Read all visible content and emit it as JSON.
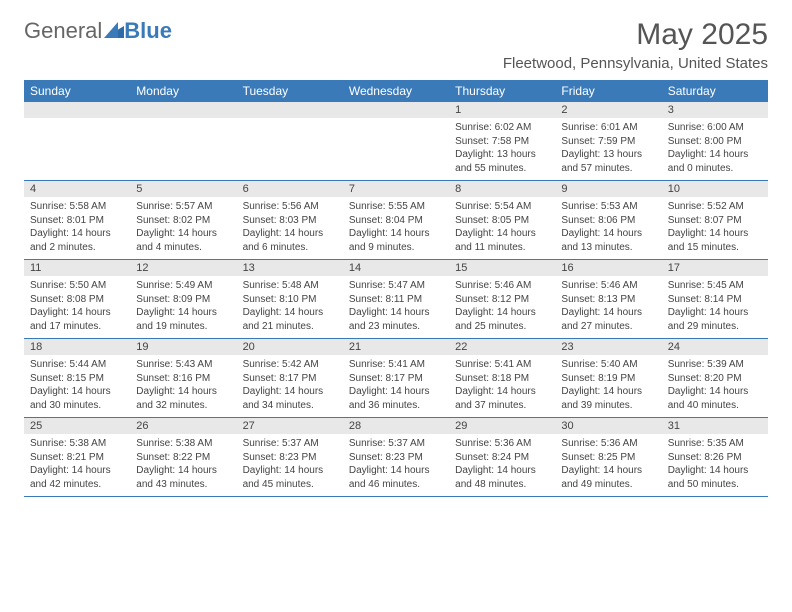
{
  "logo": {
    "part1": "General",
    "part2": "Blue"
  },
  "title": "May 2025",
  "location": "Fleetwood, Pennsylvania, United States",
  "colors": {
    "header_bg": "#3a7ab8",
    "header_text": "#ffffff",
    "date_bar_bg": "#e8e8e8",
    "text": "#444444",
    "title_text": "#555555"
  },
  "day_names": [
    "Sunday",
    "Monday",
    "Tuesday",
    "Wednesday",
    "Thursday",
    "Friday",
    "Saturday"
  ],
  "weeks": [
    [
      {
        "date": "",
        "sunrise": "",
        "sunset": "",
        "daylight": ""
      },
      {
        "date": "",
        "sunrise": "",
        "sunset": "",
        "daylight": ""
      },
      {
        "date": "",
        "sunrise": "",
        "sunset": "",
        "daylight": ""
      },
      {
        "date": "",
        "sunrise": "",
        "sunset": "",
        "daylight": ""
      },
      {
        "date": "1",
        "sunrise": "Sunrise: 6:02 AM",
        "sunset": "Sunset: 7:58 PM",
        "daylight": "Daylight: 13 hours and 55 minutes."
      },
      {
        "date": "2",
        "sunrise": "Sunrise: 6:01 AM",
        "sunset": "Sunset: 7:59 PM",
        "daylight": "Daylight: 13 hours and 57 minutes."
      },
      {
        "date": "3",
        "sunrise": "Sunrise: 6:00 AM",
        "sunset": "Sunset: 8:00 PM",
        "daylight": "Daylight: 14 hours and 0 minutes."
      }
    ],
    [
      {
        "date": "4",
        "sunrise": "Sunrise: 5:58 AM",
        "sunset": "Sunset: 8:01 PM",
        "daylight": "Daylight: 14 hours and 2 minutes."
      },
      {
        "date": "5",
        "sunrise": "Sunrise: 5:57 AM",
        "sunset": "Sunset: 8:02 PM",
        "daylight": "Daylight: 14 hours and 4 minutes."
      },
      {
        "date": "6",
        "sunrise": "Sunrise: 5:56 AM",
        "sunset": "Sunset: 8:03 PM",
        "daylight": "Daylight: 14 hours and 6 minutes."
      },
      {
        "date": "7",
        "sunrise": "Sunrise: 5:55 AM",
        "sunset": "Sunset: 8:04 PM",
        "daylight": "Daylight: 14 hours and 9 minutes."
      },
      {
        "date": "8",
        "sunrise": "Sunrise: 5:54 AM",
        "sunset": "Sunset: 8:05 PM",
        "daylight": "Daylight: 14 hours and 11 minutes."
      },
      {
        "date": "9",
        "sunrise": "Sunrise: 5:53 AM",
        "sunset": "Sunset: 8:06 PM",
        "daylight": "Daylight: 14 hours and 13 minutes."
      },
      {
        "date": "10",
        "sunrise": "Sunrise: 5:52 AM",
        "sunset": "Sunset: 8:07 PM",
        "daylight": "Daylight: 14 hours and 15 minutes."
      }
    ],
    [
      {
        "date": "11",
        "sunrise": "Sunrise: 5:50 AM",
        "sunset": "Sunset: 8:08 PM",
        "daylight": "Daylight: 14 hours and 17 minutes."
      },
      {
        "date": "12",
        "sunrise": "Sunrise: 5:49 AM",
        "sunset": "Sunset: 8:09 PM",
        "daylight": "Daylight: 14 hours and 19 minutes."
      },
      {
        "date": "13",
        "sunrise": "Sunrise: 5:48 AM",
        "sunset": "Sunset: 8:10 PM",
        "daylight": "Daylight: 14 hours and 21 minutes."
      },
      {
        "date": "14",
        "sunrise": "Sunrise: 5:47 AM",
        "sunset": "Sunset: 8:11 PM",
        "daylight": "Daylight: 14 hours and 23 minutes."
      },
      {
        "date": "15",
        "sunrise": "Sunrise: 5:46 AM",
        "sunset": "Sunset: 8:12 PM",
        "daylight": "Daylight: 14 hours and 25 minutes."
      },
      {
        "date": "16",
        "sunrise": "Sunrise: 5:46 AM",
        "sunset": "Sunset: 8:13 PM",
        "daylight": "Daylight: 14 hours and 27 minutes."
      },
      {
        "date": "17",
        "sunrise": "Sunrise: 5:45 AM",
        "sunset": "Sunset: 8:14 PM",
        "daylight": "Daylight: 14 hours and 29 minutes."
      }
    ],
    [
      {
        "date": "18",
        "sunrise": "Sunrise: 5:44 AM",
        "sunset": "Sunset: 8:15 PM",
        "daylight": "Daylight: 14 hours and 30 minutes."
      },
      {
        "date": "19",
        "sunrise": "Sunrise: 5:43 AM",
        "sunset": "Sunset: 8:16 PM",
        "daylight": "Daylight: 14 hours and 32 minutes."
      },
      {
        "date": "20",
        "sunrise": "Sunrise: 5:42 AM",
        "sunset": "Sunset: 8:17 PM",
        "daylight": "Daylight: 14 hours and 34 minutes."
      },
      {
        "date": "21",
        "sunrise": "Sunrise: 5:41 AM",
        "sunset": "Sunset: 8:17 PM",
        "daylight": "Daylight: 14 hours and 36 minutes."
      },
      {
        "date": "22",
        "sunrise": "Sunrise: 5:41 AM",
        "sunset": "Sunset: 8:18 PM",
        "daylight": "Daylight: 14 hours and 37 minutes."
      },
      {
        "date": "23",
        "sunrise": "Sunrise: 5:40 AM",
        "sunset": "Sunset: 8:19 PM",
        "daylight": "Daylight: 14 hours and 39 minutes."
      },
      {
        "date": "24",
        "sunrise": "Sunrise: 5:39 AM",
        "sunset": "Sunset: 8:20 PM",
        "daylight": "Daylight: 14 hours and 40 minutes."
      }
    ],
    [
      {
        "date": "25",
        "sunrise": "Sunrise: 5:38 AM",
        "sunset": "Sunset: 8:21 PM",
        "daylight": "Daylight: 14 hours and 42 minutes."
      },
      {
        "date": "26",
        "sunrise": "Sunrise: 5:38 AM",
        "sunset": "Sunset: 8:22 PM",
        "daylight": "Daylight: 14 hours and 43 minutes."
      },
      {
        "date": "27",
        "sunrise": "Sunrise: 5:37 AM",
        "sunset": "Sunset: 8:23 PM",
        "daylight": "Daylight: 14 hours and 45 minutes."
      },
      {
        "date": "28",
        "sunrise": "Sunrise: 5:37 AM",
        "sunset": "Sunset: 8:23 PM",
        "daylight": "Daylight: 14 hours and 46 minutes."
      },
      {
        "date": "29",
        "sunrise": "Sunrise: 5:36 AM",
        "sunset": "Sunset: 8:24 PM",
        "daylight": "Daylight: 14 hours and 48 minutes."
      },
      {
        "date": "30",
        "sunrise": "Sunrise: 5:36 AM",
        "sunset": "Sunset: 8:25 PM",
        "daylight": "Daylight: 14 hours and 49 minutes."
      },
      {
        "date": "31",
        "sunrise": "Sunrise: 5:35 AM",
        "sunset": "Sunset: 8:26 PM",
        "daylight": "Daylight: 14 hours and 50 minutes."
      }
    ]
  ]
}
